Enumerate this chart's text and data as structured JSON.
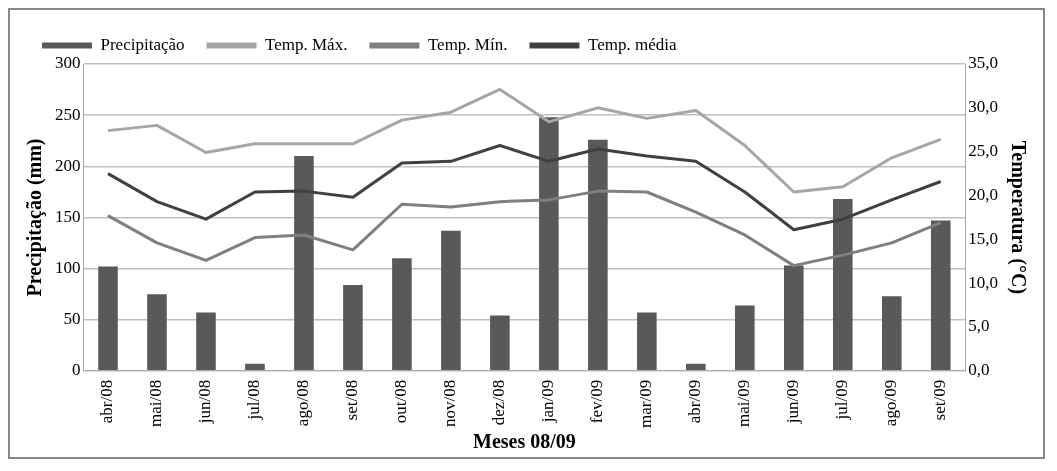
{
  "chart_data": {
    "type": "bar",
    "xlabel": "Meses 08/09",
    "ylabel": "Precipitação (mm)",
    "y2label": "Temperatura (°C)",
    "categories": [
      "abr/08",
      "mai/08",
      "jun/08",
      "jul/08",
      "ago/08",
      "set/08",
      "out/08",
      "nov/08",
      "dez/08",
      "jan/09",
      "fev/09",
      "mar/09",
      "abr/09",
      "mai/09",
      "jun/09",
      "jul/09",
      "ago/09",
      "set/09"
    ],
    "series": [
      {
        "name": "Precipitação",
        "color": "#595959",
        "values": [
          102,
          75,
          57,
          7,
          210,
          84,
          110,
          137,
          54,
          248,
          226,
          57,
          7,
          64,
          103,
          168,
          73,
          147
        ]
      },
      {
        "name": "Temp. Máx.",
        "type": "line",
        "axis": "y2",
        "color": "#a6a6a6",
        "values": [
          27.4,
          28.0,
          24.9,
          25.9,
          25.9,
          25.9,
          28.6,
          29.5,
          32.1,
          28.4,
          30.0,
          28.8,
          29.7,
          25.7,
          20.4,
          21.0,
          24.3,
          26.4
        ]
      },
      {
        "name": "Temp. Mín.",
        "type": "line",
        "axis": "y2",
        "color": "#7f7f7f",
        "values": [
          17.7,
          14.6,
          12.6,
          15.2,
          15.5,
          13.8,
          19.0,
          18.7,
          19.3,
          19.5,
          20.5,
          20.4,
          18.1,
          15.5,
          12.0,
          13.2,
          14.6,
          16.9
        ]
      },
      {
        "name": "Temp. média",
        "type": "line",
        "axis": "y2",
        "color": "#404040",
        "values": [
          22.5,
          19.3,
          17.3,
          20.4,
          20.5,
          19.8,
          23.7,
          23.9,
          25.7,
          23.9,
          25.3,
          24.5,
          23.9,
          20.4,
          16.1,
          17.3,
          19.5,
          21.6
        ]
      }
    ],
    "ylim": [
      0,
      300
    ],
    "yticks": [
      0,
      50,
      100,
      150,
      200,
      250,
      300
    ],
    "y2lim": [
      0,
      35
    ],
    "y2ticks": [
      {
        "value": 0,
        "label": "0,0"
      },
      {
        "value": 5,
        "label": "5,0"
      },
      {
        "value": 10,
        "label": "10,0"
      },
      {
        "value": 15,
        "label": "15,0"
      },
      {
        "value": 20,
        "label": "20,0"
      },
      {
        "value": 25,
        "label": "25,0"
      },
      {
        "value": 30,
        "label": "30,0"
      },
      {
        "value": 35,
        "label": "35,0"
      }
    ],
    "grid": "y",
    "legend": "top",
    "marker": "none"
  }
}
